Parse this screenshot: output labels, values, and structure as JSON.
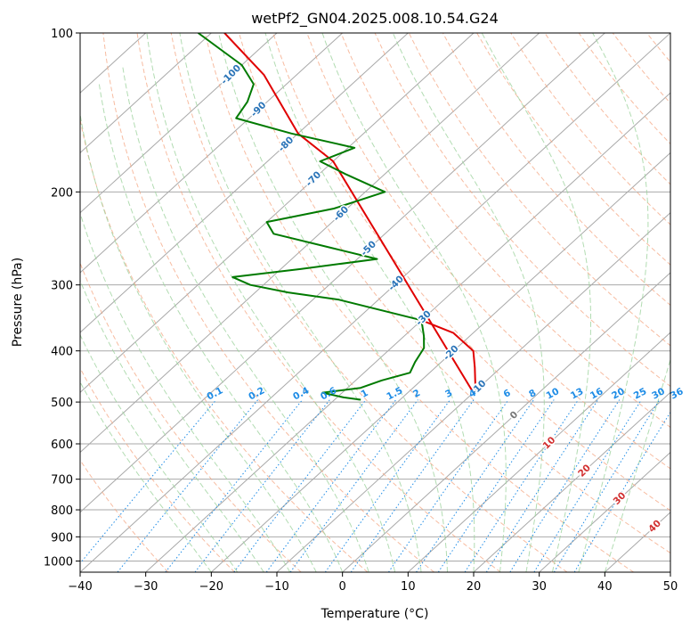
{
  "chart_data": {
    "type": "line",
    "title": "wetPf2_GN04.2025.008.10.54.G24",
    "xlabel": "Temperature (°C)",
    "ylabel": "Pressure (hPa)",
    "xlim": [
      -40,
      50
    ],
    "ylim": [
      1050,
      100
    ],
    "y_scale": "log",
    "grid": true,
    "x_ticks": [
      -40,
      -30,
      -20,
      -10,
      0,
      10,
      20,
      30,
      40,
      50
    ],
    "y_ticks": [
      100,
      200,
      300,
      400,
      500,
      600,
      700,
      800,
      900,
      1000
    ],
    "skew_isotherm_labels": [
      -100,
      -90,
      -80,
      -70,
      -60,
      -50,
      -40,
      -30,
      -20,
      -10,
      0,
      10,
      20,
      30,
      40
    ],
    "mixing_ratio_labels": [
      "0.1",
      "0.2",
      "0.4",
      "0.6",
      "1",
      "1.5",
      "2",
      "3",
      "4",
      "6",
      "8",
      "10",
      "13",
      "16",
      "20",
      "25",
      "30",
      "36"
    ],
    "series": [
      {
        "color": "#e00000",
        "points": [
          {
            "p": 350,
            "t": -30
          },
          {
            "p": 370,
            "t": -23
          },
          {
            "p": 400,
            "t": -17
          },
          {
            "p": 430,
            "t": -14
          },
          {
            "p": 470,
            "t": -10.5
          },
          {
            "p": 480,
            "t": -10
          },
          {
            "p": 175,
            "t": -70
          },
          {
            "p": 155,
            "t": -80
          },
          {
            "p": 120,
            "t": -95
          },
          {
            "p": 100,
            "t": -108
          }
        ]
      },
      {
        "color": "#007a00",
        "points": [
          {
            "p": 495,
            "t": -26
          },
          {
            "p": 490,
            "t": -29
          },
          {
            "p": 480,
            "t": -33
          },
          {
            "p": 470,
            "t": -28
          },
          {
            "p": 455,
            "t": -26
          },
          {
            "p": 440,
            "t": -23
          },
          {
            "p": 420,
            "t": -24
          },
          {
            "p": 395,
            "t": -25
          },
          {
            "p": 375,
            "t": -27
          },
          {
            "p": 350,
            "t": -30
          },
          {
            "p": 320,
            "t": -46
          },
          {
            "p": 310,
            "t": -55
          },
          {
            "p": 300,
            "t": -62
          },
          {
            "p": 290,
            "t": -66
          },
          {
            "p": 280,
            "t": -57
          },
          {
            "p": 268,
            "t": -47
          },
          {
            "p": 255,
            "t": -56
          },
          {
            "p": 240,
            "t": -67
          },
          {
            "p": 228,
            "t": -70
          },
          {
            "p": 215,
            "t": -62
          },
          {
            "p": 200,
            "t": -57
          },
          {
            "p": 185,
            "t": -66
          },
          {
            "p": 175,
            "t": -72
          },
          {
            "p": 165,
            "t": -69
          },
          {
            "p": 155,
            "t": -81
          },
          {
            "p": 145,
            "t": -92
          },
          {
            "p": 135,
            "t": -93
          },
          {
            "p": 125,
            "t": -95
          },
          {
            "p": 115,
            "t": -100
          },
          {
            "p": 100,
            "t": -112
          }
        ]
      }
    ],
    "colors": {
      "temperature": "#e00000",
      "dewpoint": "#007a00",
      "isotherm_label": "#2a74b8",
      "mixing_ratio": "#1e8ce6",
      "dry_adiabat": "#f4a582",
      "moist_adiabat": "#9fd39f",
      "grid": "#a9a9a9"
    }
  }
}
